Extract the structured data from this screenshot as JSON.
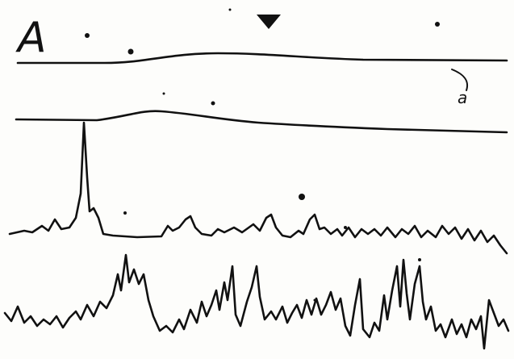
{
  "panel_label": "A",
  "trace_label": "a"
}
